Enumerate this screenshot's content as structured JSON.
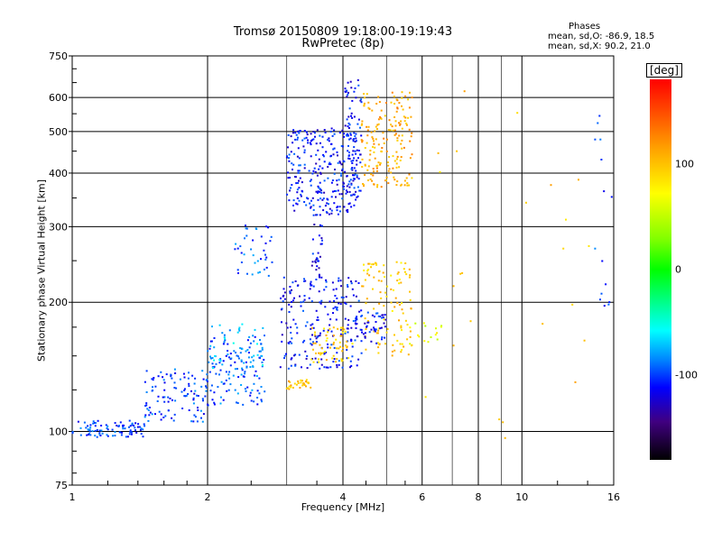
{
  "title": {
    "line1": "Tromsø 20150809 19:18:00-19:19:43",
    "line2": "RwPretec (8p)"
  },
  "phases_box": {
    "heading": "Phases",
    "line_o": "mean, sd,O:  -86.9,  18.5",
    "line_x": "mean, sd,X:   90.2,  21.0"
  },
  "colorbar": {
    "unit": "[deg]",
    "ticks": [
      {
        "value": 100,
        "label": "100"
      },
      {
        "value": 0,
        "label": "0"
      },
      {
        "value": -100,
        "label": "-100"
      }
    ],
    "range": [
      -180,
      180
    ]
  },
  "chart_data": {
    "type": "scatter",
    "xlabel": "Frequency [MHz]",
    "ylabel": "Stationary phase Virtual Height [km]",
    "xscale": "log",
    "yscale": "log",
    "xlim": [
      1,
      16
    ],
    "ylim": [
      75,
      750
    ],
    "grid": true,
    "xticks": [
      {
        "value": 1,
        "label": "1"
      },
      {
        "value": 2,
        "label": "2"
      },
      {
        "value": 4,
        "label": "4"
      },
      {
        "value": 6,
        "label": "6"
      },
      {
        "value": 8,
        "label": "8"
      },
      {
        "value": 10,
        "label": "10"
      },
      {
        "value": 16,
        "label": "16"
      }
    ],
    "xminor": [
      3,
      5,
      7,
      9
    ],
    "yticks": [
      {
        "value": 75,
        "label": "75"
      },
      {
        "value": 100,
        "label": "100"
      },
      {
        "value": 200,
        "label": "200"
      },
      {
        "value": 300,
        "label": "300"
      },
      {
        "value": 400,
        "label": "400"
      },
      {
        "value": 500,
        "label": "500"
      },
      {
        "value": 600,
        "label": "600"
      },
      {
        "value": 750,
        "label": "750"
      }
    ],
    "clusters": [
      {
        "name": "",
        "phase": -100,
        "f": [
          1.0,
          1.45
        ],
        "h": [
          97,
          106
        ],
        "n": 90
      },
      {
        "name": "",
        "phase": -100,
        "f": [
          1.45,
          2.0
        ],
        "h": [
          105,
          140
        ],
        "n": 110
      },
      {
        "name": "",
        "phase": -95,
        "f": [
          2.0,
          2.7
        ],
        "h": [
          115,
          170
        ],
        "n": 130
      },
      {
        "name": "",
        "phase": -70,
        "f": [
          2.0,
          2.7
        ],
        "h": [
          130,
          180
        ],
        "n": 40
      },
      {
        "name": "",
        "phase": -95,
        "f": [
          2.3,
          2.8
        ],
        "h": [
          230,
          305
        ],
        "n": 40
      },
      {
        "name": "",
        "phase": -110,
        "f": [
          2.9,
          4.4
        ],
        "h": [
          140,
          230
        ],
        "n": 220
      },
      {
        "name": "",
        "phase": 100,
        "f": [
          3.0,
          3.4
        ],
        "h": [
          125,
          132
        ],
        "n": 30
      },
      {
        "name": "",
        "phase": 95,
        "f": [
          3.4,
          4.2
        ],
        "h": [
          145,
          175
        ],
        "n": 60
      },
      {
        "name": "",
        "phase": 95,
        "f": [
          4.4,
          5.7
        ],
        "h": [
          150,
          250
        ],
        "n": 110
      },
      {
        "name": "",
        "phase": -110,
        "f": [
          4.2,
          5.0
        ],
        "h": [
          160,
          190
        ],
        "n": 50
      },
      {
        "name": "",
        "phase": -110,
        "f": [
          3.0,
          4.3
        ],
        "h": [
          320,
          510
        ],
        "n": 260
      },
      {
        "name": "",
        "phase": -115,
        "f": [
          3.4,
          3.6
        ],
        "h": [
          230,
          320
        ],
        "n": 30
      },
      {
        "name": "",
        "phase": -110,
        "f": [
          4.0,
          4.4
        ],
        "h": [
          350,
          660
        ],
        "n": 90
      },
      {
        "name": "",
        "phase": 110,
        "f": [
          4.4,
          5.7
        ],
        "h": [
          370,
          620
        ],
        "n": 180
      },
      {
        "name": "",
        "phase": 60,
        "f": [
          5.6,
          6.8
        ],
        "h": [
          160,
          180
        ],
        "n": 15
      },
      {
        "name": "",
        "phase": 100,
        "f": [
          6.0,
          14.5
        ],
        "h": [
          90,
          640
        ],
        "n": 25
      },
      {
        "name": "",
        "phase": -100,
        "f": [
          14.5,
          15.9
        ],
        "h": [
          180,
          560
        ],
        "n": 15
      }
    ]
  }
}
